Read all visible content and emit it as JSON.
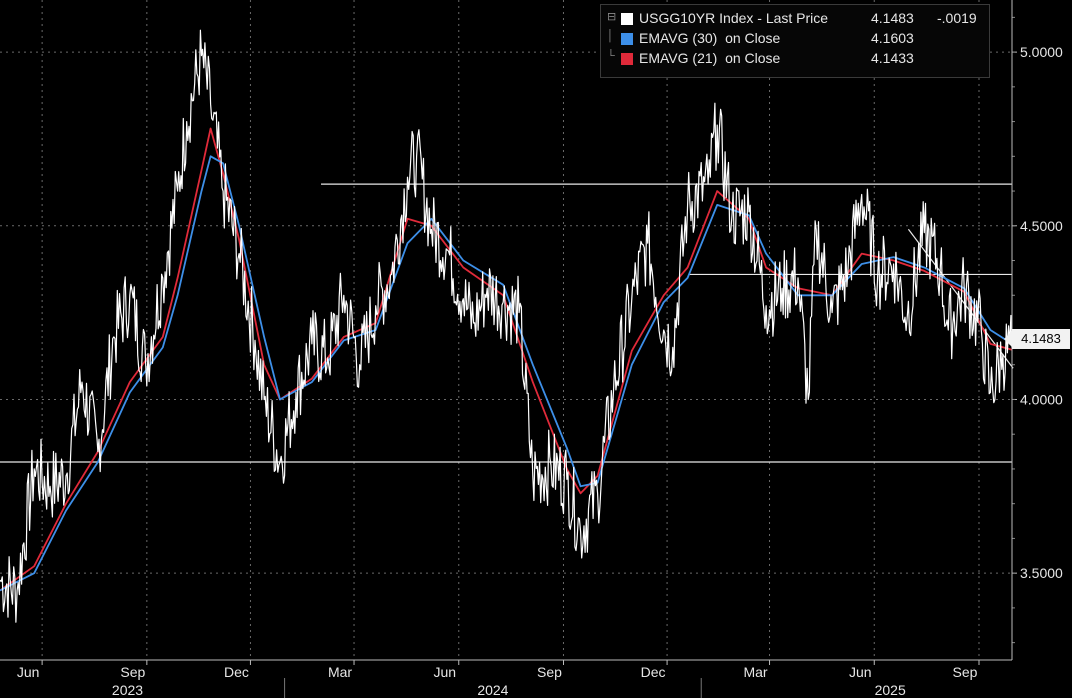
{
  "legend": {
    "rows": [
      {
        "swatch": "#ffffff",
        "name": "USGG10YR Index - Last Price",
        "value": "4.1483",
        "change": "-.0019"
      },
      {
        "swatch": "#3d8fe8",
        "name": "EMAVG (30)  on Close",
        "value": "4.1603",
        "change": ""
      },
      {
        "swatch": "#e02a3a",
        "name": "EMAVG (21)  on Close",
        "value": "4.1433",
        "change": ""
      }
    ]
  },
  "last_price_label": "4.1483",
  "chart_data": {
    "type": "line",
    "title": "",
    "xlabel": "",
    "ylabel": "",
    "ylim": [
      3.25,
      5.15
    ],
    "grid": true,
    "legend_position": "top-right",
    "background": "#000000",
    "y_ticks": [
      {
        "value": 3.5,
        "label": "3.5000"
      },
      {
        "value": 4.0,
        "label": "4.0000"
      },
      {
        "value": 4.5,
        "label": "4.5000"
      },
      {
        "value": 5.0,
        "label": "5.0000"
      }
    ],
    "x_start": "2023-04-25",
    "x_end": "2025-09-30",
    "month_ticks": [
      {
        "date": "2023-06-01",
        "label": "Jun"
      },
      {
        "date": "2023-09-01",
        "label": "Sep"
      },
      {
        "date": "2023-12-01",
        "label": "Dec"
      },
      {
        "date": "2024-03-01",
        "label": "Mar"
      },
      {
        "date": "2024-06-01",
        "label": "Jun"
      },
      {
        "date": "2024-09-01",
        "label": "Sep"
      },
      {
        "date": "2024-12-01",
        "label": "Dec"
      },
      {
        "date": "2025-03-01",
        "label": "Mar"
      },
      {
        "date": "2025-06-01",
        "label": "Jun"
      },
      {
        "date": "2025-09-01",
        "label": "Sep"
      }
    ],
    "year_ticks": [
      {
        "date": "2023-08-15",
        "label": "2023"
      },
      {
        "date": "2024-07-01",
        "label": "2024"
      },
      {
        "date": "2025-06-15",
        "label": "2025"
      }
    ],
    "year_separators": [
      "2023-12-31",
      "2024-12-31"
    ],
    "series": [
      {
        "name": "USGG10YR Index - Last Price",
        "color": "#ffffff",
        "points": [
          [
            "2023-04-25",
            3.48
          ],
          [
            "2023-05-10",
            3.45
          ],
          [
            "2023-05-25",
            3.8
          ],
          [
            "2023-06-08",
            3.75
          ],
          [
            "2023-06-22",
            3.78
          ],
          [
            "2023-07-06",
            4.05
          ],
          [
            "2023-07-20",
            3.85
          ],
          [
            "2023-08-03",
            4.18
          ],
          [
            "2023-08-17",
            4.3
          ],
          [
            "2023-08-31",
            4.1
          ],
          [
            "2023-09-15",
            4.35
          ],
          [
            "2023-09-28",
            4.6
          ],
          [
            "2023-10-06",
            4.8
          ],
          [
            "2023-10-19",
            4.99
          ],
          [
            "2023-10-27",
            4.85
          ],
          [
            "2023-11-07",
            4.6
          ],
          [
            "2023-11-21",
            4.42
          ],
          [
            "2023-12-05",
            4.17
          ],
          [
            "2023-12-13",
            4.0
          ],
          [
            "2023-12-27",
            3.82
          ],
          [
            "2024-01-10",
            4.02
          ],
          [
            "2024-01-24",
            4.16
          ],
          [
            "2024-02-07",
            4.12
          ],
          [
            "2024-02-21",
            4.3
          ],
          [
            "2024-03-06",
            4.1
          ],
          [
            "2024-03-20",
            4.27
          ],
          [
            "2024-04-03",
            4.36
          ],
          [
            "2024-04-17",
            4.64
          ],
          [
            "2024-04-25",
            4.7
          ],
          [
            "2024-05-08",
            4.49
          ],
          [
            "2024-05-22",
            4.43
          ],
          [
            "2024-06-05",
            4.29
          ],
          [
            "2024-06-14",
            4.22
          ],
          [
            "2024-06-26",
            4.32
          ],
          [
            "2024-07-10",
            4.28
          ],
          [
            "2024-07-24",
            4.25
          ],
          [
            "2024-08-05",
            3.78
          ],
          [
            "2024-08-21",
            3.81
          ],
          [
            "2024-09-04",
            3.77
          ],
          [
            "2024-09-16",
            3.62
          ],
          [
            "2024-10-01",
            3.73
          ],
          [
            "2024-10-15",
            4.03
          ],
          [
            "2024-10-31",
            4.29
          ],
          [
            "2024-11-14",
            4.45
          ],
          [
            "2024-11-28",
            4.2
          ],
          [
            "2024-12-06",
            4.15
          ],
          [
            "2024-12-19",
            4.56
          ],
          [
            "2025-01-06",
            4.62
          ],
          [
            "2025-01-14",
            4.79
          ],
          [
            "2025-01-27",
            4.53
          ],
          [
            "2025-02-11",
            4.54
          ],
          [
            "2025-02-26",
            4.27
          ],
          [
            "2025-03-12",
            4.32
          ],
          [
            "2025-03-26",
            4.35
          ],
          [
            "2025-04-04",
            4.0
          ],
          [
            "2025-04-11",
            4.49
          ],
          [
            "2025-04-25",
            4.25
          ],
          [
            "2025-05-09",
            4.38
          ],
          [
            "2025-05-21",
            4.59
          ],
          [
            "2025-06-04",
            4.36
          ],
          [
            "2025-06-18",
            4.39
          ],
          [
            "2025-06-30",
            4.24
          ],
          [
            "2025-07-15",
            4.48
          ],
          [
            "2025-07-29",
            4.38
          ],
          [
            "2025-08-05",
            4.2
          ],
          [
            "2025-08-19",
            4.32
          ],
          [
            "2025-09-03",
            4.2
          ],
          [
            "2025-09-11",
            4.02
          ],
          [
            "2025-09-22",
            4.13
          ],
          [
            "2025-09-30",
            4.1483
          ]
        ]
      },
      {
        "name": "EMAVG (30)  on Close",
        "color": "#3d8fe8",
        "points": [
          [
            "2023-04-25",
            3.45
          ],
          [
            "2023-05-25",
            3.5
          ],
          [
            "2023-06-22",
            3.68
          ],
          [
            "2023-07-20",
            3.82
          ],
          [
            "2023-08-17",
            4.02
          ],
          [
            "2023-09-15",
            4.15
          ],
          [
            "2023-09-28",
            4.3
          ],
          [
            "2023-10-19",
            4.6
          ],
          [
            "2023-10-27",
            4.7
          ],
          [
            "2023-11-07",
            4.68
          ],
          [
            "2023-11-21",
            4.5
          ],
          [
            "2023-12-13",
            4.18
          ],
          [
            "2023-12-27",
            4.0
          ],
          [
            "2024-01-24",
            4.05
          ],
          [
            "2024-02-21",
            4.17
          ],
          [
            "2024-03-20",
            4.2
          ],
          [
            "2024-04-17",
            4.45
          ],
          [
            "2024-05-08",
            4.52
          ],
          [
            "2024-06-05",
            4.4
          ],
          [
            "2024-07-10",
            4.33
          ],
          [
            "2024-08-05",
            4.1
          ],
          [
            "2024-09-04",
            3.86
          ],
          [
            "2024-09-16",
            3.75
          ],
          [
            "2024-10-01",
            3.76
          ],
          [
            "2024-10-31",
            4.1
          ],
          [
            "2024-11-28",
            4.28
          ],
          [
            "2024-12-19",
            4.35
          ],
          [
            "2025-01-14",
            4.56
          ],
          [
            "2025-02-11",
            4.53
          ],
          [
            "2025-02-26",
            4.42
          ],
          [
            "2025-03-26",
            4.3
          ],
          [
            "2025-04-25",
            4.3
          ],
          [
            "2025-05-21",
            4.39
          ],
          [
            "2025-06-18",
            4.41
          ],
          [
            "2025-07-15",
            4.38
          ],
          [
            "2025-08-19",
            4.32
          ],
          [
            "2025-09-11",
            4.2
          ],
          [
            "2025-09-30",
            4.1603
          ]
        ]
      },
      {
        "name": "EMAVG (21)  on Close",
        "color": "#e02a3a",
        "points": [
          [
            "2023-04-25",
            3.45
          ],
          [
            "2023-05-25",
            3.52
          ],
          [
            "2023-06-22",
            3.7
          ],
          [
            "2023-07-20",
            3.85
          ],
          [
            "2023-08-17",
            4.05
          ],
          [
            "2023-09-15",
            4.18
          ],
          [
            "2023-09-28",
            4.35
          ],
          [
            "2023-10-19",
            4.66
          ],
          [
            "2023-10-27",
            4.78
          ],
          [
            "2023-11-07",
            4.65
          ],
          [
            "2023-11-21",
            4.46
          ],
          [
            "2023-12-13",
            4.1
          ],
          [
            "2023-12-27",
            4.0
          ],
          [
            "2024-01-24",
            4.06
          ],
          [
            "2024-02-21",
            4.18
          ],
          [
            "2024-03-20",
            4.22
          ],
          [
            "2024-04-17",
            4.52
          ],
          [
            "2024-05-08",
            4.5
          ],
          [
            "2024-06-05",
            4.38
          ],
          [
            "2024-07-10",
            4.3
          ],
          [
            "2024-08-05",
            4.05
          ],
          [
            "2024-09-04",
            3.8
          ],
          [
            "2024-09-16",
            3.73
          ],
          [
            "2024-10-01",
            3.78
          ],
          [
            "2024-10-31",
            4.14
          ],
          [
            "2024-11-28",
            4.3
          ],
          [
            "2024-12-19",
            4.38
          ],
          [
            "2025-01-14",
            4.6
          ],
          [
            "2025-02-11",
            4.52
          ],
          [
            "2025-02-26",
            4.38
          ],
          [
            "2025-03-26",
            4.32
          ],
          [
            "2025-04-25",
            4.3
          ],
          [
            "2025-05-21",
            4.42
          ],
          [
            "2025-06-18",
            4.4
          ],
          [
            "2025-07-15",
            4.37
          ],
          [
            "2025-08-19",
            4.31
          ],
          [
            "2025-09-11",
            4.16
          ],
          [
            "2025-09-30",
            4.1433
          ]
        ]
      }
    ],
    "annotation_lines": [
      {
        "kind": "horizontal",
        "from": "2024-02-01",
        "to": "2025-09-30",
        "y": 4.62
      },
      {
        "kind": "horizontal",
        "from": "2024-12-20",
        "to": "2025-09-30",
        "y": 4.36
      },
      {
        "kind": "horizontal",
        "from": "2023-04-25",
        "to": "2025-09-30",
        "y": 3.82
      },
      {
        "kind": "trend",
        "from": "2025-07-01",
        "y1": 4.49,
        "to": "2025-10-01",
        "y2": 4.09
      }
    ]
  }
}
